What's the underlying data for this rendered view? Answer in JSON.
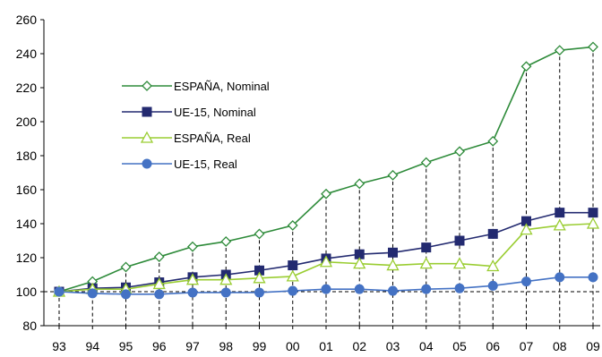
{
  "chart_data": {
    "type": "line",
    "title": "",
    "xlabel": "",
    "ylabel": "",
    "categories": [
      "93",
      "94",
      "95",
      "96",
      "97",
      "98",
      "99",
      "00",
      "01",
      "02",
      "03",
      "04",
      "05",
      "06",
      "07",
      "08",
      "09"
    ],
    "ylim": [
      80,
      260
    ],
    "yticks": [
      80,
      100,
      120,
      140,
      160,
      180,
      200,
      220,
      240,
      260
    ],
    "reference_line": 100,
    "grid": false,
    "legend_position": "upper-left inside plot",
    "series": [
      {
        "name": "ESPAÑA, Nominal",
        "color": "#2e8b3a",
        "marker": "diamond-open",
        "values": [
          100,
          106,
          114.5,
          120.5,
          126.5,
          129.5,
          134,
          139,
          157.5,
          163.5,
          168.5,
          176,
          182.5,
          188.5,
          232.5,
          242,
          244
        ]
      },
      {
        "name": "UE-15, Nominal",
        "color": "#232a70",
        "marker": "square-filled",
        "values": [
          100,
          102,
          102.5,
          105.5,
          108.5,
          110,
          112.5,
          115.5,
          119.5,
          122,
          123,
          126,
          130,
          134,
          141.5,
          146.5,
          146.5
        ]
      },
      {
        "name": "ESPAÑA, Real",
        "color": "#9acd32",
        "marker": "triangle-open",
        "values": [
          100,
          101.5,
          101.5,
          104.5,
          107,
          107,
          108,
          109,
          117.5,
          116.5,
          115.5,
          116.5,
          116.5,
          115,
          136.5,
          139,
          140
        ]
      },
      {
        "name": "UE-15, Real",
        "color": "#4472c4",
        "marker": "circle-filled",
        "values": [
          100,
          99,
          98.5,
          98.5,
          99.5,
          99.5,
          99.5,
          100.5,
          101.5,
          101.5,
          100.5,
          101.5,
          102,
          103.5,
          106,
          108.5,
          108.5
        ]
      }
    ]
  }
}
